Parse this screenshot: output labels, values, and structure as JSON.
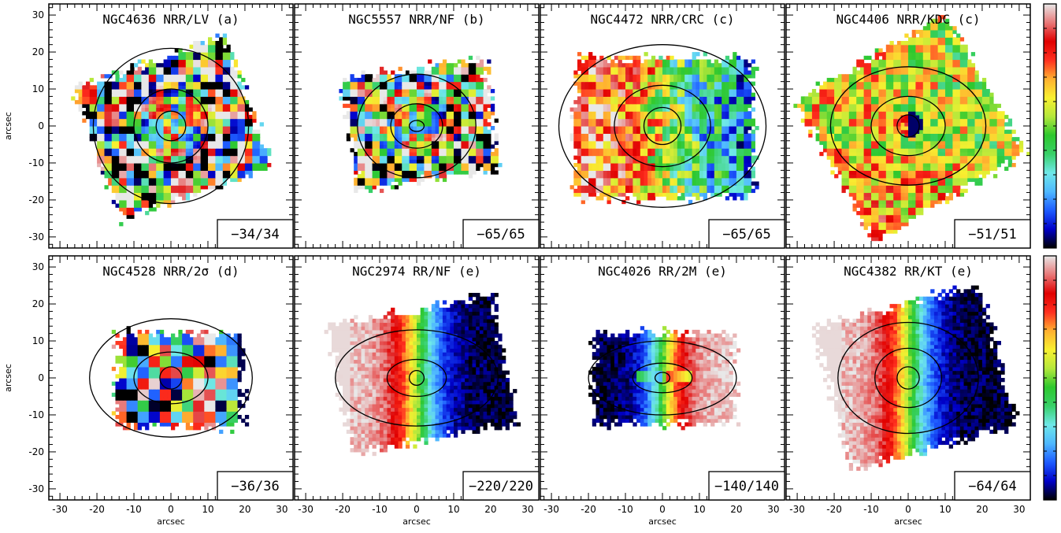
{
  "chart_data": {
    "type": "heatmap",
    "axis": {
      "xlabel": "arcsec",
      "ylabel": "arcsec",
      "xlim": [
        -33,
        33
      ],
      "ylim": [
        -33,
        33
      ],
      "ticks": [
        -30,
        -20,
        -10,
        0,
        10,
        20,
        30
      ]
    },
    "colorbar": {
      "colors": [
        "#000000",
        "#0000c8",
        "#1e5cff",
        "#4fb8ff",
        "#6fe8e8",
        "#38d068",
        "#2ec82e",
        "#b4e83c",
        "#f8f030",
        "#ffb030",
        "#ff3020",
        "#e00000",
        "#e87878",
        "#e8e8e8"
      ]
    },
    "panels": [
      {
        "title": "NGC4636 NRR/LV (a)",
        "range": "−34/34",
        "pattern": "noise",
        "amp": 0.45,
        "fov": [
          -24,
          24,
          -22,
          20
        ],
        "rot": 20,
        "contours": [
          [
            4,
            4
          ],
          [
            10,
            10
          ],
          [
            21,
            21
          ]
        ]
      },
      {
        "title": "NGC5557 NRR/NF (b)",
        "range": "−65/65",
        "pattern": "noise",
        "amp": 0.3,
        "fov": [
          -21,
          22,
          -17,
          17
        ],
        "rot": 8,
        "contours": [
          [
            2,
            1.5
          ],
          [
            7,
            6
          ],
          [
            16,
            14
          ]
        ]
      },
      {
        "title": "NGC4472 NRR/CRC (c)",
        "range": "−65/65",
        "pattern": "gradient",
        "amp": 0.5,
        "fov": [
          -27,
          27,
          -22,
          20
        ],
        "rot": 0,
        "contours": [
          [
            5,
            5
          ],
          [
            13,
            11
          ],
          [
            28,
            22
          ]
        ]
      },
      {
        "title": "NGC4406 NRR/KDC (c)",
        "range": "−51/51",
        "pattern": "kdc",
        "amp": 0.25,
        "fov": [
          -26,
          26,
          -25,
          23
        ],
        "rot": 30,
        "contours": [
          [
            3,
            3
          ],
          [
            10,
            8
          ],
          [
            21,
            16
          ]
        ]
      },
      {
        "title": "NGC4528 NRR/2σ (d)",
        "range": "−36/36",
        "pattern": "noise2",
        "amp": 0.35,
        "fov": [
          -17,
          21,
          -15,
          13
        ],
        "rot": 0,
        "contours": [
          [
            3,
            3
          ],
          [
            10,
            7
          ],
          [
            22,
            16
          ]
        ]
      },
      {
        "title": "NGC2974 RR/NF (e)",
        "range": "−220/220",
        "pattern": "rot",
        "amp": 1.0,
        "fov": [
          -24,
          26,
          -19,
          20
        ],
        "rot": 10,
        "contours": [
          [
            2,
            2
          ],
          [
            8,
            5
          ],
          [
            22,
            13
          ]
        ]
      },
      {
        "title": "NGC4026 RR/2M (e)",
        "range": "−140/140",
        "pattern": "rot2",
        "amp": 1.0,
        "fov": [
          -21,
          21,
          -14,
          13
        ],
        "rot": 0,
        "contours": [
          [
            2,
            1.5
          ],
          [
            8,
            4
          ],
          [
            20,
            10
          ]
        ]
      },
      {
        "title": "NGC4382 RR/KT (e)",
        "range": "−64/64",
        "pattern": "rot",
        "amp": 0.9,
        "fov": [
          -24,
          27,
          -22,
          22
        ],
        "rot": 15,
        "contours": [
          [
            3,
            3
          ],
          [
            9,
            8
          ],
          [
            19,
            15
          ]
        ]
      }
    ]
  }
}
